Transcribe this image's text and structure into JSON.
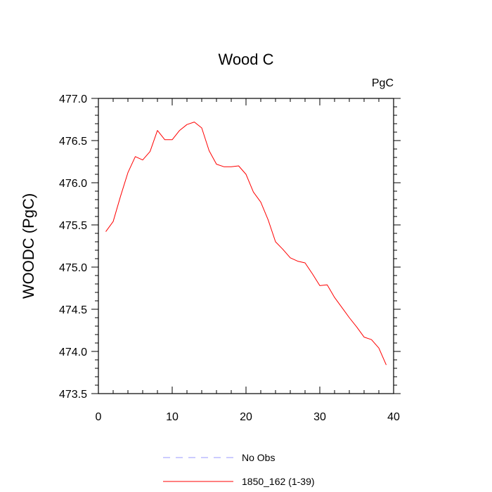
{
  "chart_data": {
    "type": "line",
    "title": "Wood C",
    "units_label": "PgC",
    "ylabel": "WOODC  (PgC)",
    "xlabel": "",
    "xlim": [
      0,
      40
    ],
    "ylim": [
      473.5,
      477.0
    ],
    "x_ticks": [
      0,
      10,
      20,
      30,
      40
    ],
    "x_tick_labels": [
      "0",
      "10",
      "20",
      "30",
      "40"
    ],
    "y_ticks": [
      473.5,
      474.0,
      474.5,
      475.0,
      475.5,
      476.0,
      476.5,
      477.0
    ],
    "y_tick_labels": [
      "473.5",
      "474.0",
      "474.5",
      "475.0",
      "475.5",
      "476.0",
      "476.5",
      "477.0"
    ],
    "grid": false,
    "legend_placement": "bottom",
    "series": [
      {
        "name": "No Obs",
        "color": "#9999ff",
        "dash": "dashed",
        "x": [],
        "values": []
      },
      {
        "name": "1850_162 (1-39)",
        "color": "#ff0000",
        "dash": "solid",
        "x": [
          1,
          2,
          3,
          4,
          5,
          6,
          7,
          8,
          9,
          10,
          11,
          12,
          13,
          14,
          15,
          16,
          17,
          18,
          19,
          20,
          21,
          22,
          23,
          24,
          25,
          26,
          27,
          28,
          29,
          30,
          31,
          32,
          33,
          34,
          35,
          36,
          37,
          38,
          39
        ],
        "values": [
          475.42,
          475.54,
          475.84,
          476.12,
          476.31,
          476.27,
          476.37,
          476.62,
          476.51,
          476.51,
          476.62,
          476.69,
          476.72,
          476.65,
          476.38,
          476.22,
          476.19,
          476.19,
          476.2,
          476.1,
          475.89,
          475.77,
          475.56,
          475.3,
          475.21,
          475.11,
          475.07,
          475.05,
          474.92,
          474.78,
          474.79,
          474.64,
          474.52,
          474.4,
          474.29,
          474.17,
          474.14,
          474.04,
          473.84
        ]
      }
    ]
  }
}
